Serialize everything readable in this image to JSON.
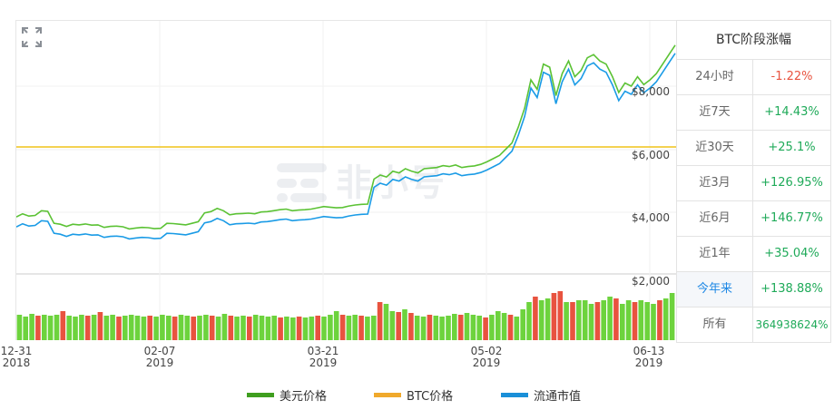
{
  "chart_data": {
    "type": "line",
    "title": "",
    "xlabel": "",
    "ylabel": "",
    "x_tick_labels": [
      {
        "date": "12-31",
        "year": "2018"
      },
      {
        "date": "02-07",
        "year": "2019"
      },
      {
        "date": "03-21",
        "year": "2019"
      },
      {
        "date": "05-02",
        "year": "2019"
      },
      {
        "date": "06-13",
        "year": "2019"
      }
    ],
    "y_tick_labels": [
      "$2,000",
      "$4,000",
      "$6,000",
      "$8,000"
    ],
    "ylim": [
      0,
      9500
    ],
    "grid": true,
    "legend_position": "bottom",
    "reference_line": {
      "name": "BTC价格",
      "value": 6200,
      "color": "#f0c419"
    },
    "series": [
      {
        "name": "美元价格",
        "color": "#5bc234",
        "values": [
          3850,
          3950,
          3880,
          3900,
          4050,
          4030,
          3650,
          3620,
          3550,
          3620,
          3600,
          3630,
          3590,
          3600,
          3520,
          3550,
          3560,
          3540,
          3470,
          3500,
          3520,
          3510,
          3480,
          3490,
          3650,
          3640,
          3620,
          3600,
          3650,
          3700,
          3980,
          4020,
          4120,
          4050,
          3920,
          3950,
          3960,
          3970,
          3950,
          4010,
          4020,
          4050,
          4080,
          4100,
          4050,
          4070,
          4080,
          4100,
          4140,
          4180,
          4160,
          4140,
          4150,
          4200,
          4230,
          4250,
          4260,
          5050,
          5180,
          5120,
          5300,
          5250,
          5380,
          5300,
          5250,
          5380,
          5400,
          5420,
          5480,
          5450,
          5500,
          5420,
          5450,
          5470,
          5520,
          5600,
          5700,
          5800,
          6000,
          6200,
          6700,
          7300,
          8200,
          7900,
          8700,
          8600,
          7700,
          8400,
          8800,
          8300,
          8500,
          8900,
          9000,
          8800,
          8700,
          8300,
          7800,
          8100,
          8000,
          8300,
          8050,
          8200,
          8400,
          8700,
          9000,
          9300
        ],
        "marker": "approximate"
      },
      {
        "name": "流通市值",
        "color": "#1a9be6",
        "note": "tracks price, offset below"
      },
      {
        "name": "BTC价格",
        "color": "#f0c419",
        "note": "flat reference line"
      }
    ],
    "volume_bars": {
      "colors": {
        "up": "#6dd33d",
        "down": "#e8533f"
      },
      "heights": [
        14,
        12,
        15,
        13,
        14,
        13,
        14,
        18,
        13,
        12,
        14,
        13,
        14,
        17,
        13,
        14,
        12,
        13,
        14,
        13,
        12,
        13,
        12,
        14,
        13,
        12,
        14,
        13,
        12,
        13,
        14,
        13,
        12,
        15,
        13,
        12,
        13,
        12,
        14,
        13,
        12,
        13,
        11,
        12,
        11,
        12,
        11,
        12,
        13,
        12,
        14,
        18,
        14,
        13,
        14,
        13,
        12,
        13,
        28,
        26,
        18,
        17,
        20,
        16,
        13,
        12,
        14,
        13,
        12,
        13,
        15,
        14,
        16,
        14,
        13,
        11,
        14,
        18,
        16,
        14,
        12,
        20,
        28,
        34,
        30,
        32,
        38,
        40,
        28,
        28,
        30,
        30,
        26,
        28,
        30,
        34,
        32,
        26,
        30,
        28,
        30,
        28,
        26,
        30,
        32,
        38
      ],
      "down_indices": [
        3,
        7,
        11,
        13,
        16,
        21,
        25,
        28,
        31,
        34,
        37,
        42,
        45,
        48,
        52,
        55,
        58,
        61,
        63,
        66,
        71,
        75,
        79,
        83,
        86,
        87,
        89,
        93,
        96,
        99,
        103
      ]
    }
  },
  "panel": {
    "title": "BTC阶段涨幅",
    "rows": [
      {
        "label": "24小时",
        "value": "-1.22%",
        "color": "#e8533f"
      },
      {
        "label": "近7天",
        "value": "+14.43%",
        "color": "#1faa59"
      },
      {
        "label": "近30天",
        "value": "+25.1%",
        "color": "#1faa59"
      },
      {
        "label": "近3月",
        "value": "+126.95%",
        "color": "#1faa59"
      },
      {
        "label": "近6月",
        "value": "+146.77%",
        "color": "#1faa59"
      },
      {
        "label": "近1年",
        "value": "+35.04%",
        "color": "#1faa59"
      },
      {
        "label": "今年来",
        "value": "+138.88%",
        "color": "#1faa59",
        "active": true
      },
      {
        "label": "所有",
        "value": "364938624%",
        "color": "#1faa59"
      }
    ]
  },
  "legend": [
    {
      "label": "美元价格",
      "color": "#3f9e1f"
    },
    {
      "label": "BTC价格",
      "color": "#f0a92c"
    },
    {
      "label": "流通市值",
      "color": "#1a8fd8"
    }
  ],
  "watermark": "非小号"
}
